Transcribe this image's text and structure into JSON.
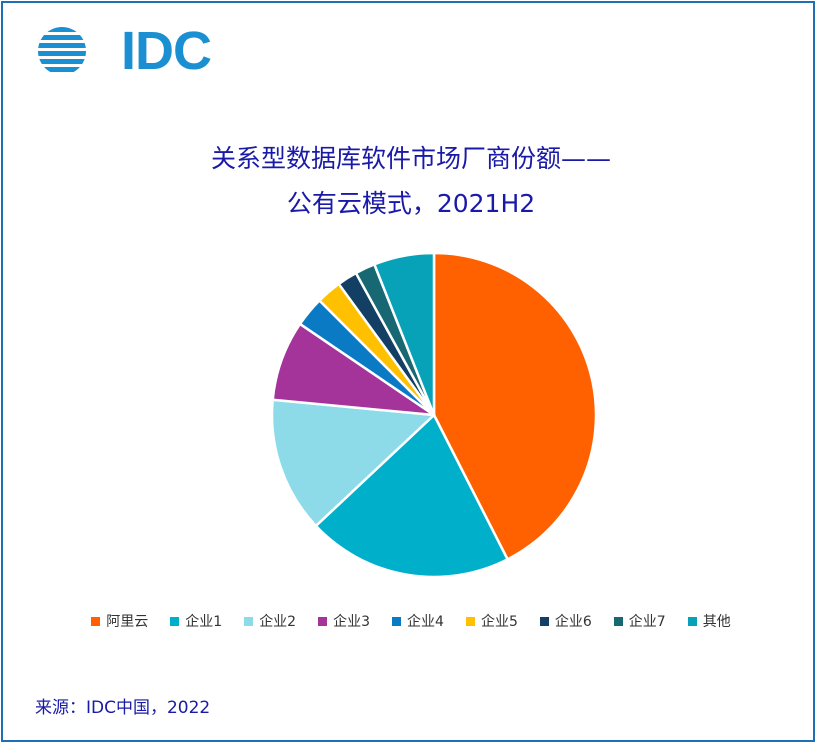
{
  "logo": {
    "text": "IDC",
    "color": "#1a8fd1"
  },
  "chart_data": {
    "type": "pie",
    "title_lines": [
      "关系型数据库软件市场厂商份额——",
      "公有云模式，2021H2"
    ],
    "categories": [
      "阿里云",
      "企业1",
      "企业2",
      "企业3",
      "企业4",
      "企业5",
      "企业6",
      "企业7",
      "其他"
    ],
    "values": [
      42.5,
      20.5,
      13.5,
      8.0,
      3.0,
      2.5,
      2.0,
      2.0,
      6.0
    ],
    "colors": [
      "#ff6100",
      "#00b0cb",
      "#8ddbe8",
      "#a4349a",
      "#0a7ac4",
      "#ffc000",
      "#133f64",
      "#176872",
      "#08a2b8"
    ],
    "start_angle_deg": 0,
    "direction": "clockwise",
    "legend_position": "bottom"
  },
  "source": "来源：IDC中国，2022"
}
